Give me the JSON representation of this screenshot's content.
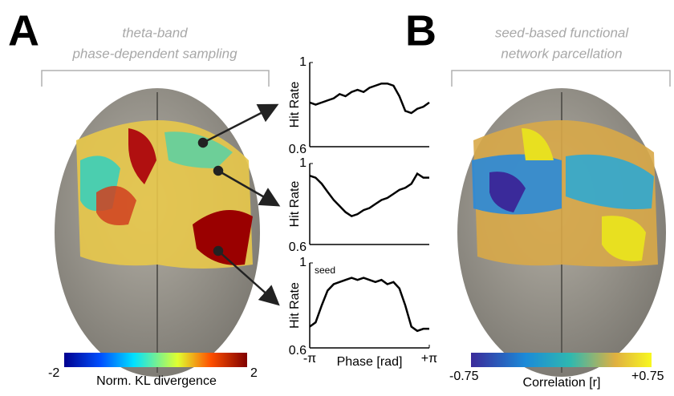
{
  "panel_a": {
    "letter": "A",
    "title_lines": [
      "theta-band",
      "phase-dependent sampling"
    ],
    "colorbar": {
      "min_label": "-2",
      "label": "Norm. KL divergence",
      "max_label": "2"
    }
  },
  "panel_b": {
    "letter": "B",
    "title_lines": [
      "seed-based functional",
      "network parcellation"
    ],
    "colorbar": {
      "min_label": "-0.75",
      "label": "Correlation [r]",
      "max_label": "+0.75"
    }
  },
  "chart_data": [
    {
      "type": "line",
      "color": "#000000",
      "ylabel": "Hit Rate",
      "ylim": [
        0.6,
        1
      ],
      "yticks": [
        0.6,
        1
      ],
      "xlim": [
        -3.14,
        3.14
      ],
      "x": [
        -3.14,
        -2.83,
        -2.51,
        -2.2,
        -1.88,
        -1.57,
        -1.26,
        -0.94,
        -0.63,
        -0.31,
        0,
        0.31,
        0.63,
        0.94,
        1.26,
        1.57,
        1.88,
        2.2,
        2.51,
        2.83,
        3.14
      ],
      "values": [
        0.81,
        0.8,
        0.81,
        0.82,
        0.83,
        0.85,
        0.84,
        0.86,
        0.87,
        0.86,
        0.88,
        0.89,
        0.9,
        0.9,
        0.89,
        0.84,
        0.77,
        0.76,
        0.78,
        0.79,
        0.81
      ]
    },
    {
      "type": "line",
      "color": "#000000",
      "ylabel": "Hit Rate",
      "ylim": [
        0.6,
        1
      ],
      "yticks": [
        0.6,
        1
      ],
      "xlim": [
        -3.14,
        3.14
      ],
      "x": [
        -3.14,
        -2.83,
        -2.51,
        -2.2,
        -1.88,
        -1.57,
        -1.26,
        -0.94,
        -0.63,
        -0.31,
        0,
        0.31,
        0.63,
        0.94,
        1.26,
        1.57,
        1.88,
        2.2,
        2.51,
        2.83,
        3.14
      ],
      "values": [
        0.94,
        0.93,
        0.9,
        0.86,
        0.82,
        0.79,
        0.76,
        0.74,
        0.75,
        0.77,
        0.78,
        0.8,
        0.82,
        0.83,
        0.85,
        0.87,
        0.88,
        0.9,
        0.95,
        0.93,
        0.93
      ]
    },
    {
      "type": "line",
      "color": "#000000",
      "ylabel": "Hit Rate",
      "ylim": [
        0.6,
        1
      ],
      "yticks": [
        0.6,
        1
      ],
      "xlim": [
        -3.14,
        3.14
      ],
      "xticks": [
        {
          "value": -3.14,
          "label": "-π"
        },
        {
          "value": 3.14,
          "label": "+π"
        }
      ],
      "xlabel": "Phase [rad]",
      "annotation": "seed",
      "x": [
        -3.14,
        -2.83,
        -2.51,
        -2.2,
        -1.88,
        -1.57,
        -1.26,
        -0.94,
        -0.63,
        -0.31,
        0,
        0.31,
        0.63,
        0.94,
        1.26,
        1.57,
        1.88,
        2.2,
        2.51,
        2.83,
        3.14
      ],
      "values": [
        0.7,
        0.72,
        0.8,
        0.87,
        0.9,
        0.91,
        0.92,
        0.93,
        0.92,
        0.93,
        0.92,
        0.91,
        0.92,
        0.9,
        0.91,
        0.88,
        0.8,
        0.7,
        0.68,
        0.69,
        0.69
      ]
    }
  ]
}
